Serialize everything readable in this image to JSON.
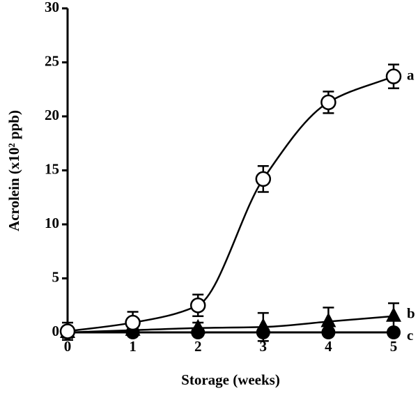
{
  "chart_data": {
    "type": "line",
    "x_label": "Storage (weeks)",
    "y_label": "Acrolein (x10² ppb)",
    "x": [
      0,
      1,
      2,
      3,
      4,
      5
    ],
    "xlim": [
      0,
      5
    ],
    "xticks": [
      0,
      1,
      2,
      3,
      4,
      5
    ],
    "ylim": [
      0,
      30
    ],
    "yticks": [
      0,
      5,
      10,
      15,
      20,
      25,
      30
    ],
    "series": [
      {
        "name": "a",
        "marker": "open-circle",
        "color": "#000000",
        "values": [
          0.1,
          0.9,
          2.5,
          14.2,
          21.3,
          23.7
        ],
        "errors": [
          0.8,
          1.0,
          1.0,
          1.2,
          1.0,
          1.1
        ]
      },
      {
        "name": "b",
        "marker": "triangle",
        "color": "#000000",
        "values": [
          0.0,
          0.2,
          0.4,
          0.5,
          1.0,
          1.5
        ],
        "errors": [
          0.5,
          0.5,
          0.5,
          1.3,
          1.3,
          1.2
        ]
      },
      {
        "name": "c",
        "marker": "filled-circle",
        "color": "#000000",
        "values": [
          0,
          0,
          0,
          0,
          0,
          0
        ]
      }
    ]
  }
}
